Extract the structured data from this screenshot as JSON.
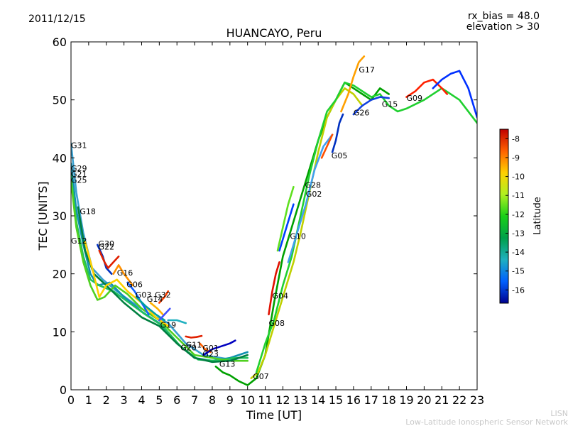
{
  "header": {
    "date": "2011/12/15",
    "rx_bias": "rx_bias = 48.0",
    "elevation": "elevation > 30"
  },
  "footer": {
    "credit_line1": "LISN",
    "credit_line2": "Low-Latitude Ionospheric Sensor Network"
  },
  "chart_data": {
    "type": "line",
    "title": "HUANCAYO, Peru",
    "xlabel": "Time [UT]",
    "ylabel": "TEC [UNITS]",
    "xlim": [
      0,
      23
    ],
    "ylim": [
      0,
      60
    ],
    "x_ticks": [
      "0",
      "1",
      "2",
      "3",
      "4",
      "5",
      "6",
      "7",
      "8",
      "9",
      "10",
      "11",
      "12",
      "13",
      "14",
      "15",
      "16",
      "17",
      "18",
      "19",
      "20",
      "21",
      "22",
      "23"
    ],
    "y_ticks": [
      "0",
      "10",
      "20",
      "30",
      "40",
      "50",
      "60"
    ],
    "grid": false,
    "colorbar": {
      "label": "Latitude",
      "range": [
        -16.7,
        -7.5
      ],
      "ticks": [
        "-8",
        "-9",
        "-10",
        "-11",
        "-12",
        "-13",
        "-14",
        "-15",
        "-16"
      ],
      "colors": [
        "#00008f",
        "#0060ff",
        "#1fb0c0",
        "#00a04a",
        "#18d018",
        "#b0f020",
        "#ffd000",
        "#ff6000",
        "#c00000"
      ]
    },
    "series": [
      {
        "name": "G31",
        "color": "#3aa0d0",
        "points": [
          [
            0,
            42.5
          ],
          [
            0.3,
            34
          ],
          [
            0.7,
            27
          ],
          [
            1.2,
            21
          ],
          [
            1.8,
            19
          ],
          [
            2.6,
            17
          ],
          [
            3.5,
            15
          ],
          [
            4.5,
            13
          ],
          [
            5.5,
            11.5
          ],
          [
            6.5,
            8
          ],
          [
            7.5,
            6
          ],
          [
            8.5,
            5.5
          ],
          [
            9.5,
            5
          ]
        ]
      },
      {
        "name": "G29",
        "color": "#1090b0",
        "points": [
          [
            0,
            39
          ],
          [
            0.3,
            31
          ],
          [
            0.7,
            25
          ],
          [
            1.1,
            20
          ],
          [
            1.5,
            18
          ],
          [
            2.2,
            18.5
          ],
          [
            3,
            16
          ],
          [
            4,
            13.5
          ],
          [
            5,
            11.5
          ],
          [
            6,
            8
          ],
          [
            7,
            5.5
          ],
          [
            8,
            5
          ],
          [
            9,
            5.5
          ],
          [
            10,
            6.5
          ]
        ]
      },
      {
        "name": "G21",
        "color": "#20c060",
        "points": [
          [
            0,
            37
          ],
          [
            0.3,
            29
          ],
          [
            0.7,
            23
          ],
          [
            1.1,
            19
          ],
          [
            1.6,
            18
          ],
          [
            2.4,
            17
          ],
          [
            3.3,
            15
          ],
          [
            4.2,
            13
          ],
          [
            5.2,
            11
          ],
          [
            6.2,
            7.5
          ],
          [
            7.2,
            5.2
          ],
          [
            8.2,
            5
          ],
          [
            9.2,
            5.5
          ],
          [
            10,
            5.5
          ]
        ]
      },
      {
        "name": "G25",
        "color": "#50d020",
        "points": [
          [
            0,
            36
          ],
          [
            0.3,
            28
          ],
          [
            0.7,
            22
          ],
          [
            1.1,
            18
          ],
          [
            1.5,
            15.5
          ],
          [
            1.9,
            16
          ],
          [
            2.5,
            18
          ],
          [
            3.2,
            16.5
          ],
          [
            4,
            14
          ],
          [
            5,
            12
          ],
          [
            6,
            9
          ],
          [
            7,
            6
          ],
          [
            8,
            5.5
          ],
          [
            9,
            5
          ],
          [
            10,
            5
          ]
        ]
      },
      {
        "name": "G18",
        "color": "#008040",
        "points": [
          [
            0.4,
            31.5
          ],
          [
            0.8,
            24
          ],
          [
            1.3,
            20
          ],
          [
            2,
            18
          ],
          [
            3,
            15
          ],
          [
            4,
            12.5
          ],
          [
            5,
            11
          ],
          [
            6,
            8
          ],
          [
            7,
            5.5
          ],
          [
            8,
            4.8
          ],
          [
            9,
            5
          ],
          [
            10,
            6
          ]
        ]
      },
      {
        "name": "G12",
        "color": "#ffd000",
        "points": [
          [
            0.8,
            25.5
          ],
          [
            1.2,
            21
          ],
          [
            1.6,
            16
          ],
          [
            2,
            18
          ],
          [
            2.6,
            19
          ],
          [
            3.2,
            17
          ],
          [
            4,
            15
          ],
          [
            4.8,
            12.5
          ],
          [
            5.5,
            11
          ]
        ]
      },
      {
        "name": "G30",
        "color": "#0030c0",
        "points": [
          [
            1.5,
            25
          ],
          [
            1.8,
            23
          ],
          [
            2.0,
            21
          ],
          [
            2.3,
            20
          ]
        ]
      },
      {
        "name": "G22",
        "color": "#e02000",
        "points": [
          [
            1.6,
            24
          ],
          [
            1.9,
            22
          ],
          [
            2.1,
            21
          ],
          [
            2.4,
            22
          ],
          [
            2.7,
            23
          ]
        ]
      },
      {
        "name": "G16",
        "color": "#ff9000",
        "points": [
          [
            2.4,
            20
          ],
          [
            2.7,
            21.5
          ],
          [
            3.0,
            20
          ],
          [
            3.5,
            18
          ]
        ]
      },
      {
        "name": "G06",
        "color": "#1060ff",
        "points": [
          [
            3.2,
            18.5
          ],
          [
            3.6,
            17
          ],
          [
            4.0,
            15
          ],
          [
            4.4,
            13
          ]
        ]
      },
      {
        "name": "G03",
        "color": "#00a0a0",
        "points": [
          [
            3.7,
            16
          ],
          [
            4.2,
            14.5
          ],
          [
            4.8,
            13
          ],
          [
            5.3,
            12
          ]
        ]
      },
      {
        "name": "G14",
        "color": "#ffb000",
        "points": [
          [
            4.5,
            15
          ],
          [
            4.9,
            14
          ],
          [
            5.2,
            13
          ]
        ]
      },
      {
        "name": "G32",
        "color": "#ff4000",
        "points": [
          [
            5.0,
            15
          ],
          [
            5.3,
            16
          ],
          [
            5.5,
            17
          ]
        ]
      },
      {
        "name": "G19",
        "color": "#4050ff",
        "points": [
          [
            5.0,
            12
          ],
          [
            5.3,
            13
          ],
          [
            5.6,
            14
          ]
        ]
      },
      {
        "name": "G20",
        "color": "#1fb0c0",
        "points": [
          [
            5.5,
            12
          ],
          [
            6.0,
            12
          ],
          [
            6.5,
            11.5
          ]
        ]
      },
      {
        "name": "G11",
        "color": "#e02000",
        "points": [
          [
            6.5,
            9.2
          ],
          [
            6.8,
            9
          ],
          [
            7.1,
            9.1
          ],
          [
            7.4,
            9.3
          ]
        ]
      },
      {
        "name": "G01",
        "color": "#ff6000",
        "points": [
          [
            7.3,
            8
          ],
          [
            7.6,
            7
          ],
          [
            7.9,
            6.5
          ]
        ]
      },
      {
        "name": "G23",
        "color": "#0000c0",
        "points": [
          [
            7.5,
            6
          ],
          [
            8,
            7
          ],
          [
            8.5,
            7.5
          ],
          [
            9,
            8
          ],
          [
            9.3,
            8.5
          ]
        ]
      },
      {
        "name": "G13",
        "color": "#00a000",
        "points": [
          [
            8.2,
            4
          ],
          [
            8.6,
            3
          ],
          [
            9,
            2.5
          ],
          [
            9.5,
            1.5
          ],
          [
            10,
            0.8
          ],
          [
            10.5,
            2
          ],
          [
            11,
            6
          ],
          [
            11.5,
            15
          ],
          [
            12,
            23
          ],
          [
            12.5,
            28
          ],
          [
            13,
            33
          ],
          [
            13.5,
            38
          ],
          [
            14,
            43
          ],
          [
            14.5,
            47
          ],
          [
            15,
            50
          ],
          [
            15.5,
            53
          ],
          [
            16,
            52
          ],
          [
            16.5,
            51
          ],
          [
            17,
            50
          ],
          [
            17.5,
            52
          ],
          [
            18,
            51
          ]
        ]
      },
      {
        "name": "G07",
        "color": "#c0d000",
        "points": [
          [
            10.2,
            2
          ],
          [
            10.6,
            3
          ],
          [
            11,
            6
          ],
          [
            11.4,
            10
          ],
          [
            11.8,
            14
          ],
          [
            12.2,
            18
          ],
          [
            12.6,
            22
          ],
          [
            13,
            27
          ],
          [
            13.5,
            34
          ],
          [
            14,
            41
          ],
          [
            14.5,
            47
          ],
          [
            15,
            50
          ],
          [
            15.5,
            52
          ],
          [
            16,
            51
          ],
          [
            16.5,
            49
          ]
        ]
      },
      {
        "name": "G08",
        "color": "#20d030",
        "points": [
          [
            10.5,
            3
          ],
          [
            11,
            8
          ],
          [
            11.5,
            12
          ],
          [
            12,
            18
          ],
          [
            12.5,
            23
          ],
          [
            13,
            30
          ],
          [
            13.5,
            37
          ],
          [
            14,
            43
          ],
          [
            14.5,
            48
          ],
          [
            15,
            50
          ],
          [
            15.5,
            53
          ],
          [
            16,
            52.5
          ],
          [
            17,
            50.5
          ],
          [
            17.5,
            51
          ],
          [
            18,
            49
          ],
          [
            18.5,
            48
          ],
          [
            19,
            48.5
          ],
          [
            20,
            50
          ],
          [
            21,
            52
          ],
          [
            22,
            50
          ],
          [
            23,
            46
          ]
        ]
      },
      {
        "name": "G04",
        "color": "#e01000",
        "points": [
          [
            11.2,
            13
          ],
          [
            11.4,
            17
          ],
          [
            11.6,
            20
          ],
          [
            11.8,
            22
          ]
        ]
      },
      {
        "name": "G10",
        "color": "#0040ff",
        "points": [
          [
            11.8,
            24
          ],
          [
            12.1,
            27
          ],
          [
            12.4,
            30
          ],
          [
            12.6,
            32
          ]
        ]
      },
      {
        "name": "G02",
        "color": "#60e020",
        "points": [
          [
            11.7,
            24
          ],
          [
            12,
            28
          ],
          [
            12.3,
            32
          ],
          [
            12.6,
            35
          ]
        ]
      },
      {
        "name": "G28",
        "color": "#40a0f0",
        "points": [
          [
            12.3,
            22
          ],
          [
            12.8,
            27
          ],
          [
            13.3,
            32
          ],
          [
            13.8,
            38
          ],
          [
            14.3,
            42
          ],
          [
            14.8,
            44
          ]
        ]
      },
      {
        "name": "G05",
        "color": "#ff5000",
        "points": [
          [
            14.2,
            40
          ],
          [
            14.5,
            42
          ],
          [
            14.8,
            44
          ]
        ]
      },
      {
        "name": "G26",
        "color": "#0030c0",
        "points": [
          [
            14.8,
            41
          ],
          [
            15.0,
            43
          ],
          [
            15.2,
            46
          ],
          [
            15.4,
            47.5
          ]
        ]
      },
      {
        "name": "G17",
        "color": "#ffa000",
        "points": [
          [
            15.3,
            48
          ],
          [
            15.7,
            51
          ],
          [
            16.0,
            54
          ],
          [
            16.3,
            56.5
          ],
          [
            16.6,
            57.5
          ]
        ]
      },
      {
        "name": "G15",
        "color": "#1040e0",
        "points": [
          [
            16,
            47.5
          ],
          [
            16.5,
            49
          ],
          [
            17,
            50
          ],
          [
            17.5,
            50.5
          ],
          [
            18,
            50.3
          ]
        ]
      },
      {
        "name": "G09",
        "color": "#ff2000",
        "points": [
          [
            19,
            50.5
          ],
          [
            19.5,
            51.5
          ],
          [
            20,
            53
          ],
          [
            20.5,
            53.5
          ],
          [
            21,
            52
          ],
          [
            21.3,
            51
          ]
        ]
      },
      {
        "name": "G27",
        "color": "#0030ff",
        "points": [
          [
            20.5,
            52
          ],
          [
            21,
            53.5
          ],
          [
            21.5,
            54.5
          ],
          [
            22,
            55
          ],
          [
            22.5,
            52
          ],
          [
            23,
            47
          ]
        ]
      }
    ],
    "labels": [
      {
        "text": "G31",
        "x": 0,
        "y": 42.2
      },
      {
        "text": "G29",
        "x": 0,
        "y": 38.2
      },
      {
        "text": "G21",
        "x": 0,
        "y": 37.2
      },
      {
        "text": "G25",
        "x": 0,
        "y": 36.2
      },
      {
        "text": "G18",
        "x": 0.5,
        "y": 30.8
      },
      {
        "text": "G12",
        "x": 0,
        "y": 25.7
      },
      {
        "text": "G30",
        "x": 1.55,
        "y": 25.2
      },
      {
        "text": "G22",
        "x": 1.55,
        "y": 24.7
      },
      {
        "text": "G16",
        "x": 2.6,
        "y": 20.2
      },
      {
        "text": "G06",
        "x": 3.15,
        "y": 18.2
      },
      {
        "text": "G03",
        "x": 3.65,
        "y": 16.4
      },
      {
        "text": "G32",
        "x": 4.75,
        "y": 16.4
      },
      {
        "text": "G14",
        "x": 4.3,
        "y": 15.7
      },
      {
        "text": "G19",
        "x": 5.05,
        "y": 11.2
      },
      {
        "text": "G11",
        "x": 6.5,
        "y": 7.8
      },
      {
        "text": "G20",
        "x": 6.2,
        "y": 7.3
      },
      {
        "text": "G01",
        "x": 7.45,
        "y": 7.2
      },
      {
        "text": "G23",
        "x": 7.45,
        "y": 6.2
      },
      {
        "text": "G13",
        "x": 8.4,
        "y": 4.5
      },
      {
        "text": "G07",
        "x": 10.3,
        "y": 2.3
      },
      {
        "text": "G08",
        "x": 11.2,
        "y": 11.5
      },
      {
        "text": "G04",
        "x": 11.4,
        "y": 16.2
      },
      {
        "text": "G10",
        "x": 12.4,
        "y": 26.5
      },
      {
        "text": "G28",
        "x": 13.25,
        "y": 35.3
      },
      {
        "text": "G02",
        "x": 13.3,
        "y": 33.8
      },
      {
        "text": "G05",
        "x": 14.75,
        "y": 40.4
      },
      {
        "text": "G26",
        "x": 16.0,
        "y": 47.8
      },
      {
        "text": "G17",
        "x": 16.3,
        "y": 55.2
      },
      {
        "text": "G15",
        "x": 17.6,
        "y": 49.3
      },
      {
        "text": "G09",
        "x": 19.0,
        "y": 50.3
      }
    ]
  }
}
